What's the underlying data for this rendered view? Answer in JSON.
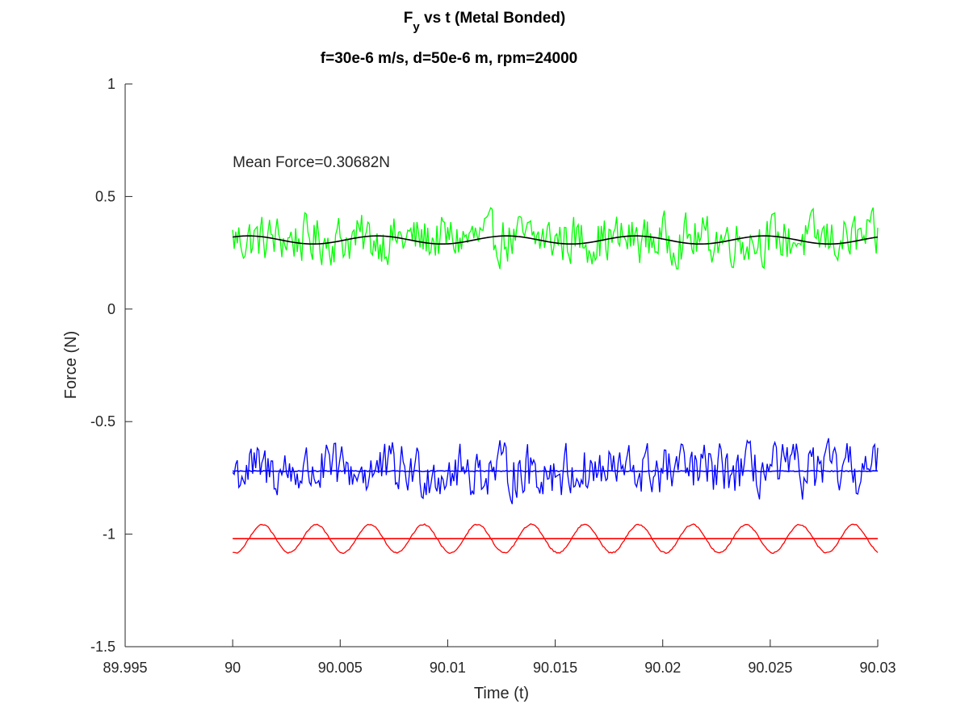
{
  "chart_data": {
    "type": "line",
    "title_main": "F",
    "title_sub_y": "y",
    "title_rest": " vs t (Metal Bonded)",
    "subtitle": "f=30e-6 m/s, d=50e-6 m, rpm=24000",
    "xlabel": "Time (t)",
    "ylabel": "Force (N)",
    "xlim": [
      89.995,
      90.03
    ],
    "ylim": [
      -1.5,
      1
    ],
    "xticks": [
      89.995,
      90,
      90.005,
      90.01,
      90.015,
      90.02,
      90.025,
      90.03
    ],
    "xtick_labels": [
      "89.995",
      "90",
      "90.005",
      "90.01",
      "90.015",
      "90.02",
      "90.025",
      "90.03"
    ],
    "yticks": [
      -1.5,
      -1,
      -0.5,
      0,
      0.5,
      1
    ],
    "ytick_labels": [
      "-1.5",
      "-1",
      "-0.5",
      "0",
      "0.5",
      "1"
    ],
    "grid": false,
    "annotation": {
      "text": "Mean Force=0.30682N",
      "x": 90.0,
      "y": 0.63
    },
    "series": [
      {
        "color": "#00ff00",
        "kind": "noisy",
        "mean": 0.31,
        "amplitude": 0.12,
        "t_start": 90.0,
        "t_end": 90.03
      },
      {
        "color": "#000000",
        "kind": "smooth",
        "mean": 0.307,
        "amplitude": 0.018,
        "t_start": 90.0,
        "t_end": 90.03
      },
      {
        "color": "#0000ff",
        "kind": "noisy",
        "mean": -0.72,
        "amplitude": 0.13,
        "t_start": 90.0,
        "t_end": 90.03
      },
      {
        "color": "#0000ff",
        "kind": "flat",
        "mean": -0.72,
        "amplitude": 0.004,
        "t_start": 90.0,
        "t_end": 90.03
      },
      {
        "color": "#ff0000",
        "kind": "sine",
        "mean": -1.02,
        "amplitude": 0.063,
        "period": 0.0025,
        "t_start": 90.0,
        "t_end": 90.03
      },
      {
        "color": "#ff0000",
        "kind": "flat",
        "mean": -1.02,
        "amplitude": 0.0,
        "t_start": 90.0,
        "t_end": 90.03
      }
    ]
  }
}
